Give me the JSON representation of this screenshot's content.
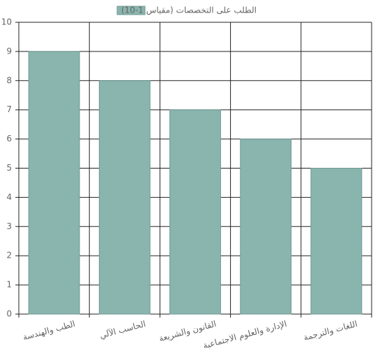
{
  "chart_data": {
    "type": "bar",
    "categories": [
      "الطب والهندسة",
      "الحاسب الآلي",
      "القانون والشريعة",
      "الإدارة والعلوم الاجتماعية",
      "اللغات والترجمة"
    ],
    "series": [
      {
        "name": "الطلب على التخصصات (مقياس 1-10)",
        "color": "#8ab5ae",
        "values": [
          9,
          8,
          7,
          6,
          5
        ]
      }
    ],
    "ylim": [
      0,
      10
    ],
    "yticks": [
      0,
      1,
      2,
      3,
      4,
      5,
      6,
      7,
      8,
      9,
      10
    ],
    "grid": true,
    "legend": "top"
  }
}
